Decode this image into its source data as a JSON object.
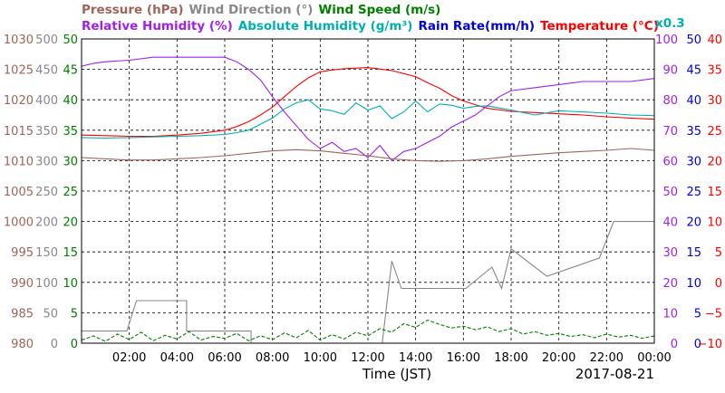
{
  "chart_data": {
    "type": "line",
    "date": "2017-08-21",
    "xlabel": "Time (JST)",
    "x_ticks": [
      "02:00",
      "04:00",
      "06:00",
      "08:00",
      "10:00",
      "12:00",
      "14:00",
      "16:00",
      "18:00",
      "20:00",
      "22:00",
      "00:00"
    ],
    "x_range_hours": [
      0,
      24
    ],
    "legend_row1": [
      {
        "label": "Pressure (hPa)",
        "color": "#a0645a"
      },
      {
        "label": "Wind Direction (°)",
        "color": "#888888"
      },
      {
        "label": "Wind Speed (m/s)",
        "color": "#008000"
      }
    ],
    "legend_row2": [
      {
        "label": "Relative Humidity (%)",
        "color": "#a020f0"
      },
      {
        "label": "Absolute Humidity (g/m³)",
        "color": "#00b0b0"
      },
      {
        "label": "Rain Rate(mm/h)",
        "color": "#0000dd"
      },
      {
        "label": "Temperature (°C)",
        "color": "#ff0000"
      }
    ],
    "abs_humidity_scale_note": "x0.3",
    "axes": {
      "pressure": {
        "color": "#a0645a",
        "range": [
          980,
          1030
        ],
        "ticks": [
          "1030",
          "1025",
          "1020",
          "1015",
          "1010",
          "1005",
          "1000",
          "995",
          "990",
          "985",
          "980"
        ]
      },
      "wind_direction": {
        "color": "#888888",
        "range": [
          0,
          500
        ],
        "ticks": [
          "500",
          "450",
          "400",
          "350",
          "300",
          "250",
          "200",
          "150",
          "100",
          "50",
          "0"
        ]
      },
      "wind_speed": {
        "color": "#008000",
        "range": [
          0,
          50
        ],
        "ticks": [
          "50",
          "45",
          "40",
          "35",
          "30",
          "25",
          "20",
          "15",
          "10",
          "5",
          "0"
        ]
      },
      "humidity": {
        "color": "#a020f0",
        "range": [
          0,
          100
        ],
        "ticks": [
          "100",
          "90",
          "80",
          "70",
          "60",
          "50",
          "40",
          "30",
          "20",
          "10",
          "0"
        ]
      },
      "rain_rate": {
        "color": "#0000dd",
        "range": [
          0,
          50
        ],
        "ticks": [
          "50",
          "45",
          "40",
          "35",
          "30",
          "25",
          "20",
          "15",
          "10",
          "5",
          "0"
        ]
      },
      "temperature": {
        "color": "#ff0000",
        "range": [
          -10,
          40
        ],
        "ticks": [
          "40",
          "35",
          "30",
          "25",
          "20",
          "15",
          "10",
          "5",
          "0",
          "−5",
          "−10"
        ]
      }
    },
    "series": [
      {
        "name": "Temperature (°C)",
        "axis": "temperature",
        "color": "#ff0000",
        "x": [
          0,
          1,
          2,
          3,
          4,
          5,
          6,
          6.5,
          7,
          7.5,
          8,
          8.5,
          9,
          9.5,
          10,
          10.5,
          11,
          12,
          13,
          14,
          14.5,
          15,
          15.5,
          16,
          16.5,
          17,
          18,
          19,
          20,
          21,
          22,
          23,
          24
        ],
        "y": [
          24.2,
          24.1,
          24,
          24,
          24.2,
          24.5,
          25,
          25.6,
          26.4,
          27.5,
          28.8,
          30.5,
          32.2,
          33.6,
          34.6,
          34.9,
          35.1,
          35.3,
          34.8,
          33.8,
          32.8,
          31.9,
          30.7,
          29.8,
          29.2,
          28.6,
          28.1,
          27.9,
          27.7,
          27.5,
          27.2,
          27,
          26.8
        ]
      },
      {
        "name": "Absolute Humidity (g/m³)",
        "axis": "temperature",
        "color": "#00b0b0",
        "x": [
          0,
          1,
          2,
          3,
          4,
          5,
          6,
          6.5,
          7,
          7.5,
          8,
          8.5,
          9,
          9.5,
          10,
          10.5,
          11,
          11.5,
          12,
          12.5,
          13,
          13.5,
          14,
          14.5,
          15,
          15.5,
          16,
          16.5,
          17,
          18,
          19,
          20,
          21,
          22,
          23,
          24
        ],
        "y": [
          23.8,
          23.7,
          23.8,
          23.9,
          24,
          24.1,
          24.3,
          24.6,
          25,
          26,
          27,
          28.5,
          29.5,
          30,
          28.5,
          28.2,
          27.6,
          29.5,
          28.3,
          29,
          26.9,
          28,
          29.8,
          28,
          29.3,
          29.1,
          28.6,
          28.9,
          29,
          28.3,
          27.5,
          28.2,
          28,
          27.8,
          27.5,
          27.4
        ]
      },
      {
        "name": "Relative Humidity (%)",
        "axis": "humidity",
        "color": "#a020f0",
        "x": [
          0,
          0.5,
          1,
          2,
          3,
          4,
          5,
          6,
          6.5,
          7,
          7.5,
          8,
          8.5,
          9,
          9.5,
          10,
          10.5,
          11,
          11.5,
          12,
          12.5,
          13,
          13.5,
          14,
          14.5,
          15,
          15.5,
          16,
          16.5,
          17,
          17.5,
          18,
          19,
          20,
          21,
          22,
          23,
          24
        ],
        "y": [
          91,
          92,
          92.5,
          93,
          94,
          94,
          94,
          94,
          92.5,
          90,
          86.5,
          81,
          76,
          71.5,
          67,
          64,
          66,
          63,
          64,
          61,
          65,
          60,
          63,
          64,
          66,
          68,
          71,
          73,
          75,
          78,
          81,
          83,
          84,
          85,
          86,
          86,
          86,
          87
        ]
      },
      {
        "name": "Pressure (hPa)",
        "axis": "pressure",
        "color": "#a0645a",
        "x": [
          0,
          1,
          2,
          3,
          4,
          5,
          6,
          7,
          8,
          9,
          10,
          11,
          12,
          13,
          14,
          15,
          16,
          17,
          18,
          19,
          20,
          21,
          22,
          23,
          24
        ],
        "y": [
          1010.5,
          1010.3,
          1010.1,
          1010.1,
          1010.3,
          1010.5,
          1010.8,
          1011.2,
          1011.6,
          1011.8,
          1011.6,
          1011.2,
          1010.8,
          1010.3,
          1010,
          1009.9,
          1010,
          1010.3,
          1010.7,
          1011,
          1011.3,
          1011.5,
          1011.7,
          1012,
          1011.7
        ]
      },
      {
        "name": "Wind Direction (°)",
        "axis": "wind_direction",
        "color": "#888888",
        "x": [
          0,
          1.9,
          1.9,
          2.3,
          2.3,
          4.4,
          4.4,
          7.1,
          7.1,
          12.6,
          12.6,
          13,
          13,
          13.4,
          13.4,
          16.1,
          16.1,
          17.2,
          17.2,
          17.6,
          17.6,
          18,
          18,
          19.5,
          19.5,
          21.7,
          21.7,
          22.3,
          22.3,
          24
        ],
        "y": [
          20,
          20,
          20,
          70,
          70,
          70,
          20,
          20,
          0,
          0,
          0,
          135,
          135,
          90,
          90,
          90,
          90,
          125,
          125,
          90,
          90,
          155,
          155,
          110,
          110,
          140,
          140,
          200,
          200,
          200
        ]
      },
      {
        "name": "Wind Speed (m/s)",
        "axis": "wind_speed",
        "color": "#008000",
        "x": [
          0,
          0.5,
          1,
          1.5,
          2,
          2.5,
          3,
          3.5,
          4,
          4.5,
          5,
          5.5,
          6,
          6.5,
          7,
          7.5,
          8,
          8.5,
          9,
          9.5,
          10,
          10.5,
          11,
          11.5,
          12,
          12.5,
          13,
          13.5,
          14,
          14.5,
          15,
          15.5,
          16,
          16.5,
          17,
          17.5,
          18,
          18.5,
          19,
          19.5,
          20,
          20.5,
          21,
          21.5,
          22,
          22.5,
          23,
          23.5,
          24
        ],
        "y": [
          0.5,
          1.2,
          0.3,
          1.5,
          0.6,
          1.8,
          0.4,
          1.3,
          0.7,
          1.9,
          0.5,
          1.1,
          0.8,
          1.6,
          0.4,
          1.2,
          0.6,
          1.7,
          0.9,
          2.1,
          0.5,
          1.4,
          0.7,
          1.8,
          1.2,
          2.4,
          1.8,
          3.2,
          2.6,
          3.8,
          3.1,
          2.5,
          2.8,
          2.2,
          2.7,
          1.9,
          2.4,
          1.5,
          1.9,
          1.3,
          1.6,
          1.1,
          1.4,
          0.9,
          1.5,
          1,
          1.3,
          0.8,
          1.2
        ]
      },
      {
        "name": "Rain Rate(mm/h)",
        "axis": "rain_rate",
        "color": "#0000dd",
        "x": [
          0,
          24
        ],
        "y": [
          0,
          0
        ]
      }
    ]
  }
}
